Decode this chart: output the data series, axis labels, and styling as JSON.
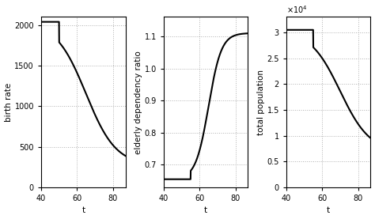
{
  "xlim": [
    40,
    87
  ],
  "xlim_display": [
    40,
    87
  ],
  "xticks": [
    40,
    60,
    80
  ],
  "xlabel": "t",
  "plot1": {
    "ylabel": "birth rate",
    "ylim": [
      0,
      2100
    ],
    "yticks": [
      0,
      500,
      1000,
      1500,
      2000
    ],
    "flat_val": 2040,
    "flat_end": 50,
    "drop_val": 270,
    "drop_start": 50,
    "drop_mid": 65,
    "steepness": 0.12
  },
  "plot2": {
    "ylabel": "elderly dependency ratio",
    "ylim": [
      0.63,
      1.16
    ],
    "yticks": [
      0.7,
      0.8,
      0.9,
      1.0,
      1.1
    ],
    "flat_val": 0.655,
    "flat_end": 55,
    "rise_val": 1.11,
    "rise_mid": 65,
    "steepness": 0.28
  },
  "plot3": {
    "ylabel": "total population",
    "ylim": [
      0,
      33000.0
    ],
    "yticks": [
      0,
      5000.0,
      10000.0,
      15000.0,
      20000.0,
      25000.0,
      30000.0
    ],
    "yticklabels": [
      "0",
      "0.5",
      "1",
      "1.5",
      "2",
      "2.5",
      "3"
    ],
    "scale_label": "x 10^4",
    "flat_val": 30500.0,
    "flat_end": 55,
    "drop_val": 6800.0,
    "drop_mid": 70,
    "steepness": 0.12
  },
  "line_color": "#000000",
  "line_width": 1.5,
  "grid_color": "#b0b0b0",
  "grid_style": ":",
  "bg_color": "#ffffff",
  "fig_bg": "#ffffff",
  "tick_fontsize": 7,
  "label_fontsize": 7.5
}
